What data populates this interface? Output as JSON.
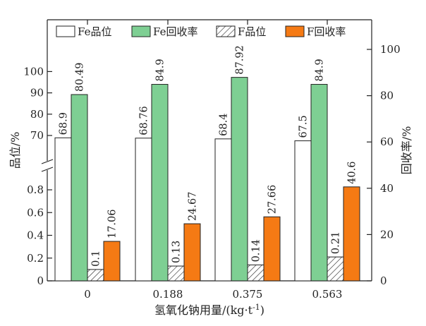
{
  "chart_data": {
    "type": "bar",
    "title": "",
    "xlabel": "氢氧化钠用量/(kg·t",
    "xlabel_sup": "-1",
    "xlabel_close": ")",
    "ylabel_left": "品位/%",
    "ylabel_right": "回收率/%",
    "categories": [
      "0",
      "0.188",
      "0.375",
      "0.563"
    ],
    "series": [
      {
        "name": "Fe品位",
        "axis": "left-upper",
        "pattern": "white",
        "values": [
          68.9,
          68.76,
          68.4,
          67.5
        ]
      },
      {
        "name": "Fe回收率",
        "axis": "right",
        "pattern": "green",
        "values": [
          80.49,
          84.9,
          87.92,
          84.9
        ]
      },
      {
        "name": "F品位",
        "axis": "left-lower",
        "pattern": "hatch",
        "values": [
          0.1,
          0.13,
          0.14,
          0.21
        ]
      },
      {
        "name": "F回收率",
        "axis": "right",
        "pattern": "orange",
        "values": [
          17.06,
          24.67,
          27.66,
          40.6
        ]
      }
    ],
    "left_upper_ticks": [
      "70",
      "80",
      "90",
      "100"
    ],
    "left_lower_ticks": [
      "0",
      "0.2",
      "0.4",
      "0.6",
      "0.8"
    ],
    "right_ticks": [
      "0",
      "20",
      "40",
      "60",
      "80",
      "100"
    ],
    "left_upper_range": [
      65,
      105
    ],
    "left_lower_range": [
      0,
      0.9
    ],
    "right_range": [
      0,
      105
    ],
    "axis_break": "left",
    "grid": false,
    "legend_position": "top",
    "colors": {
      "green": "#7ecf93",
      "orange": "#f57a14",
      "white": "#ffffff",
      "edge": "#222222"
    }
  }
}
